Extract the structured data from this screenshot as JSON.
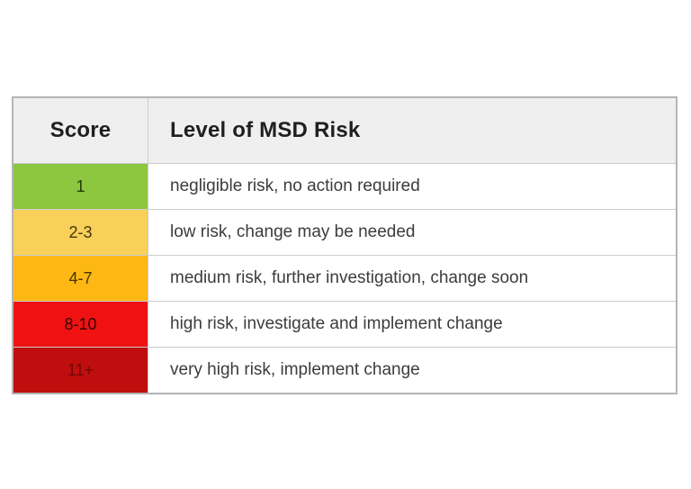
{
  "chart_data": {
    "type": "table",
    "columns": [
      "Score",
      "Level of MSD Risk"
    ],
    "rows": [
      [
        "1",
        "negligible risk, no action required"
      ],
      [
        "2-3",
        "low risk, change may be needed"
      ],
      [
        "4-7",
        "medium risk, further investigation, change soon"
      ],
      [
        "8-10",
        "high risk, investigate and implement change"
      ],
      [
        "11+",
        "very high risk, implement change"
      ]
    ],
    "row_colors": [
      "#8dc63f",
      "#f8d05a",
      "#fdb813",
      "#f01212",
      "#c00d0d"
    ],
    "legend_position": "none",
    "grid": "on"
  },
  "table": {
    "header": {
      "score": "Score",
      "level": "Level of MSD Risk"
    },
    "rows": [
      {
        "score": "1",
        "label": "negligible risk, no action required",
        "bg": "#8dc63f",
        "score_color": "#243a08"
      },
      {
        "score": "2-3",
        "label": "low risk, change may be needed",
        "bg": "#f8d05a",
        "score_color": "#46370a"
      },
      {
        "score": "4-7",
        "label": "medium risk, further investigation, change soon",
        "bg": "#fdb813",
        "score_color": "#4a3403"
      },
      {
        "score": "8-10",
        "label": "high risk, investigate and implement change",
        "bg": "#f01212",
        "score_color": "#310505"
      },
      {
        "score": "11+",
        "label": "very high risk, implement change",
        "bg": "#c00d0d",
        "score_color": "#700909"
      }
    ]
  },
  "colors": {
    "header_bg": "#efefef",
    "outer_border": "#b5b5b5",
    "inner_border": "#cccccc",
    "desc_text": "#3c3c3c",
    "page_bg": "#ffffff"
  }
}
